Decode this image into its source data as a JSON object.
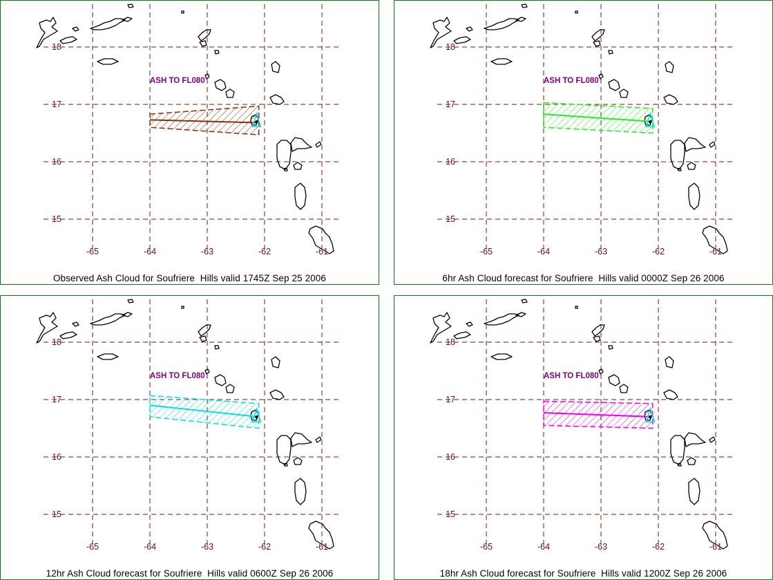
{
  "map": {
    "lon_ticks": [
      -65,
      -64,
      -63,
      -62,
      -61
    ],
    "lat_ticks": [
      18,
      17,
      16,
      15
    ],
    "grid_color": "#7a1010",
    "tick_color": "#6e0f0f",
    "coast_color": "#000000",
    "volcano_marker_color": "#00e0e0",
    "frame_color": "#0f7a0f"
  },
  "panels": [
    {
      "caption": "Observed Ash Cloud for Soufriere  Hills valid 1745Z Sep 25 2006",
      "label": "ASH TO FL080",
      "label_color": "#800080",
      "cloud_color": "#8b2d0a"
    },
    {
      "caption": "6hr Ash Cloud forecast for Soufriere  Hills valid 0000Z Sep 26 2006",
      "label": "ASH TO FL080",
      "label_color": "#800080",
      "cloud_color": "#22ee22"
    },
    {
      "caption": "12hr Ash Cloud forecast for Soufriere  Hills valid 0600Z Sep 26 2006",
      "label": "ASH TO FL080",
      "label_color": "#800080",
      "cloud_color": "#00e0e0"
    },
    {
      "caption": "18hr Ash Cloud forecast for Soufriere  Hills valid 1200Z Sep 26 2006",
      "label": "ASH TO FL080",
      "label_color": "#800080",
      "cloud_color": "#ee00ee"
    }
  ]
}
